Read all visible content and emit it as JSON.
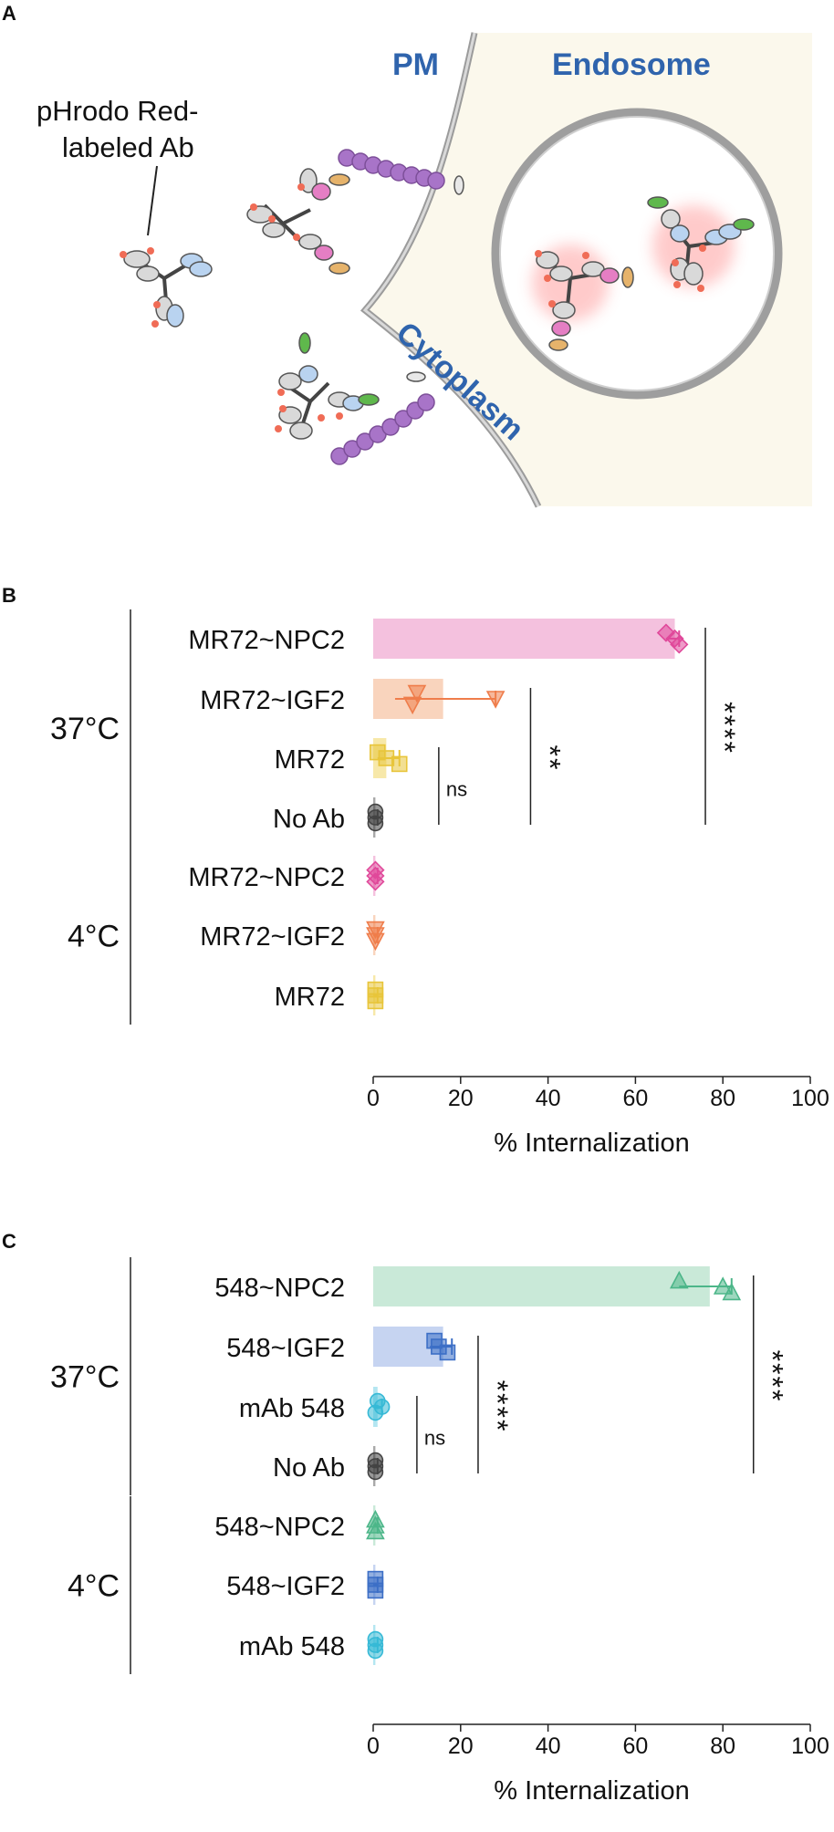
{
  "panel_a": {
    "letter": "A",
    "ab_label_line1": "pHrodo Red-",
    "ab_label_line2": "labeled Ab",
    "pm_label": "PM",
    "endosome_label": "Endosome",
    "cytoplasm_label": "Cytoplasm"
  },
  "chart_data": [
    {
      "panel": "B",
      "type": "bar",
      "xlabel": "% Internalization",
      "xlim": [
        0,
        100
      ],
      "xticks": [
        0,
        20,
        40,
        60,
        80,
        100
      ],
      "groups": [
        {
          "name": "37°C",
          "rows": [
            {
              "label": "MR72~NPC2",
              "mean": 69,
              "points": [
                67,
                69,
                70
              ],
              "error": [
                67,
                70
              ],
              "marker": "diamond",
              "color": "#e0489a",
              "bar_color": "#f2b6d8"
            },
            {
              "label": "MR72~IGF2",
              "mean": 16,
              "points": [
                10,
                28,
                9
              ],
              "error": [
                5,
                28
              ],
              "marker": "tri-down",
              "color": "#ef7d4b",
              "bar_color": "#f8cdb2"
            },
            {
              "label": "MR72",
              "mean": 3,
              "points": [
                1,
                3,
                6
              ],
              "error": [
                1,
                6
              ],
              "marker": "square",
              "color": "#e8c53a",
              "bar_color": "#f6e49a"
            },
            {
              "label": "No Ab",
              "mean": 0.5,
              "points": [
                0.5,
                0.5,
                0.5
              ],
              "error": [
                0,
                1
              ],
              "marker": "circle",
              "color": "#444444",
              "bar_color": "#9a9a9a"
            }
          ]
        },
        {
          "name": "4°C",
          "rows": [
            {
              "label": "MR72~NPC2",
              "mean": 0.5,
              "points": [
                0.5,
                0.5,
                0.5
              ],
              "error": [
                0,
                1
              ],
              "marker": "diamond",
              "color": "#e0489a",
              "bar_color": "#f2b6d8"
            },
            {
              "label": "MR72~IGF2",
              "mean": 0.5,
              "points": [
                0.5,
                0.5,
                0.5
              ],
              "error": [
                0,
                1
              ],
              "marker": "tri-down",
              "color": "#ef7d4b",
              "bar_color": "#f8cdb2"
            },
            {
              "label": "MR72",
              "mean": 0.5,
              "points": [
                0.5,
                0.5,
                0.5
              ],
              "error": [
                0,
                1
              ],
              "marker": "square",
              "color": "#e8c53a",
              "bar_color": "#f6e49a"
            }
          ]
        }
      ],
      "significance": [
        {
          "label": "ns",
          "from_row": "MR72",
          "to_row": "No Ab",
          "x": 15
        },
        {
          "label": "**",
          "from_row": "MR72~IGF2",
          "to_row": "No Ab",
          "x": 36
        },
        {
          "label": "****",
          "from_row": "MR72~NPC2",
          "to_row": "No Ab",
          "x": 76
        }
      ]
    },
    {
      "panel": "C",
      "type": "bar",
      "xlabel": "% Internalization",
      "xlim": [
        0,
        100
      ],
      "xticks": [
        0,
        20,
        40,
        60,
        80,
        100
      ],
      "groups": [
        {
          "name": "37°C",
          "rows": [
            {
              "label": "548~NPC2",
              "mean": 77,
              "points": [
                70,
                80,
                82
              ],
              "error": [
                70,
                82
              ],
              "marker": "triangle",
              "color": "#4cb689",
              "bar_color": "#bfe5d1"
            },
            {
              "label": "548~IGF2",
              "mean": 16,
              "points": [
                14,
                15,
                17
              ],
              "error": [
                13,
                18
              ],
              "marker": "square",
              "color": "#3d6fc6",
              "bar_color": "#bccdee"
            },
            {
              "label": "mAb 548",
              "mean": 1,
              "points": [
                1,
                2,
                0.5
              ],
              "error": [
                0,
                2
              ],
              "marker": "circle",
              "color": "#36b9d6",
              "bar_color": "#a7e2ef"
            },
            {
              "label": "No Ab",
              "mean": 0.5,
              "points": [
                0.5,
                0.5,
                0.5
              ],
              "error": [
                0,
                1
              ],
              "marker": "circle",
              "color": "#444444",
              "bar_color": "#9a9a9a"
            }
          ]
        },
        {
          "name": "4°C",
          "rows": [
            {
              "label": "548~NPC2",
              "mean": 0.5,
              "points": [
                0.5,
                0.5,
                0.5
              ],
              "error": [
                0,
                1
              ],
              "marker": "triangle",
              "color": "#4cb689",
              "bar_color": "#bfe5d1"
            },
            {
              "label": "548~IGF2",
              "mean": 0.5,
              "points": [
                0.5,
                0.5,
                0.5
              ],
              "error": [
                0,
                1
              ],
              "marker": "square",
              "color": "#3d6fc6",
              "bar_color": "#bccdee"
            },
            {
              "label": "mAb 548",
              "mean": 0.5,
              "points": [
                0.5,
                0.5,
                0.5
              ],
              "error": [
                0,
                1
              ],
              "marker": "circle",
              "color": "#36b9d6",
              "bar_color": "#a7e2ef"
            }
          ]
        }
      ],
      "significance": [
        {
          "label": "ns",
          "from_row": "mAb 548",
          "to_row": "No Ab",
          "x": 10
        },
        {
          "label": "****",
          "from_row": "548~IGF2",
          "to_row": "No Ab",
          "x": 24
        },
        {
          "label": "****",
          "from_row": "548~NPC2",
          "to_row": "No Ab",
          "x": 87
        }
      ]
    }
  ]
}
